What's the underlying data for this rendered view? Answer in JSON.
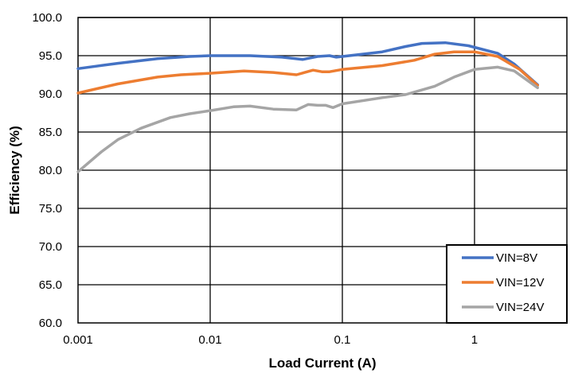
{
  "chart_data": {
    "type": "line",
    "title": "",
    "xlabel": "Load Current (A)",
    "ylabel": "Efficiency (%)",
    "x_scale": "log",
    "xlim": [
      0.001,
      5
    ],
    "ylim": [
      60,
      100
    ],
    "x_ticks": [
      0.001,
      0.01,
      0.1,
      1
    ],
    "x_tick_labels": [
      "0.001",
      "0.01",
      "0.1",
      "1"
    ],
    "y_ticks": [
      60,
      65,
      70,
      75,
      80,
      85,
      90,
      95,
      100
    ],
    "y_tick_labels": [
      "60.0",
      "65.0",
      "70.0",
      "75.0",
      "80.0",
      "85.0",
      "90.0",
      "95.0",
      "100.0"
    ],
    "grid": "major, both axes",
    "legend_position": "bottom-right",
    "series": [
      {
        "name": "VIN=8V",
        "color": "#4472C4",
        "points": [
          [
            0.001,
            93.3
          ],
          [
            0.002,
            94.0
          ],
          [
            0.004,
            94.6
          ],
          [
            0.007,
            94.9
          ],
          [
            0.01,
            95.0
          ],
          [
            0.02,
            95.0
          ],
          [
            0.035,
            94.8
          ],
          [
            0.05,
            94.5
          ],
          [
            0.065,
            94.9
          ],
          [
            0.08,
            95.0
          ],
          [
            0.09,
            94.8
          ],
          [
            0.1,
            94.9
          ],
          [
            0.2,
            95.5
          ],
          [
            0.3,
            96.2
          ],
          [
            0.4,
            96.6
          ],
          [
            0.6,
            96.7
          ],
          [
            0.9,
            96.3
          ],
          [
            1.5,
            95.3
          ],
          [
            2.0,
            93.9
          ],
          [
            3.0,
            91.2
          ]
        ]
      },
      {
        "name": "VIN=12V",
        "color": "#ED7D31",
        "points": [
          [
            0.001,
            90.1
          ],
          [
            0.002,
            91.3
          ],
          [
            0.004,
            92.2
          ],
          [
            0.006,
            92.5
          ],
          [
            0.01,
            92.7
          ],
          [
            0.018,
            93.0
          ],
          [
            0.03,
            92.8
          ],
          [
            0.045,
            92.5
          ],
          [
            0.06,
            93.1
          ],
          [
            0.07,
            92.9
          ],
          [
            0.08,
            92.9
          ],
          [
            0.1,
            93.2
          ],
          [
            0.2,
            93.7
          ],
          [
            0.35,
            94.4
          ],
          [
            0.5,
            95.2
          ],
          [
            0.7,
            95.5
          ],
          [
            1.0,
            95.5
          ],
          [
            1.5,
            94.9
          ],
          [
            2.2,
            93.2
          ],
          [
            3.0,
            91.1
          ]
        ]
      },
      {
        "name": "VIN=24V",
        "color": "#A5A5A5",
        "points": [
          [
            0.001,
            79.8
          ],
          [
            0.0015,
            82.4
          ],
          [
            0.002,
            84.0
          ],
          [
            0.003,
            85.5
          ],
          [
            0.005,
            86.9
          ],
          [
            0.007,
            87.4
          ],
          [
            0.01,
            87.8
          ],
          [
            0.015,
            88.3
          ],
          [
            0.02,
            88.4
          ],
          [
            0.03,
            88.0
          ],
          [
            0.045,
            87.9
          ],
          [
            0.055,
            88.6
          ],
          [
            0.065,
            88.5
          ],
          [
            0.075,
            88.5
          ],
          [
            0.085,
            88.2
          ],
          [
            0.1,
            88.7
          ],
          [
            0.2,
            89.5
          ],
          [
            0.3,
            89.9
          ],
          [
            0.5,
            91.0
          ],
          [
            0.7,
            92.2
          ],
          [
            1.0,
            93.2
          ],
          [
            1.5,
            93.5
          ],
          [
            2.0,
            93.0
          ],
          [
            3.0,
            90.8
          ]
        ]
      }
    ]
  }
}
